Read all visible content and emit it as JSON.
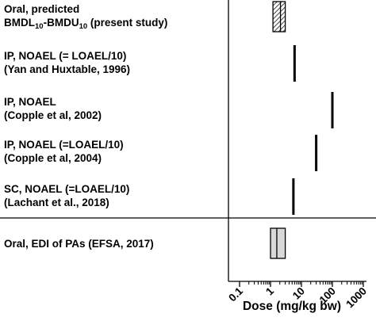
{
  "chart_data": {
    "type": "interval",
    "xscale": "log",
    "xlim": [
      0.1,
      1000
    ],
    "ticks": [
      0.1,
      1,
      10,
      100,
      1000
    ],
    "tick_labels": [
      "0.1",
      "1",
      "10",
      "100",
      "1000"
    ],
    "xlabel": "Dose (mg/kg bw)",
    "rows": [
      {
        "label_lines": [
          [
            "Oral, predicted"
          ],
          [
            "BMDL",
            {
              "sub": "10"
            },
            "-BMDU",
            {
              "sub": "10"
            },
            " (present study)"
          ]
        ],
        "kind": "box",
        "low": 1.2,
        "high": 3.0,
        "median": 2.1,
        "fill": "hatched"
      },
      {
        "label_lines": [
          [
            "IP, NOAEL (= LOAEL/10)"
          ],
          [
            "(Yan and Huxtable, 1996)"
          ]
        ],
        "kind": "line",
        "value": 6
      },
      {
        "label_lines": [
          [
            "IP, NOAEL"
          ],
          [
            "(Copple et al, 2002)"
          ]
        ],
        "kind": "line",
        "value": 100
      },
      {
        "label_lines": [
          [
            "IP, NOAEL (=LOAEL/10)"
          ],
          [
            "(Copple et al, 2004)"
          ]
        ],
        "kind": "line",
        "value": 30
      },
      {
        "label_lines": [
          [
            "SC,  NOAEL (=LOAEL/10)"
          ],
          [
            "(Lachant et al., 2018)"
          ]
        ],
        "kind": "line",
        "value": 5.5
      },
      {
        "label_lines": [
          [
            "Oral, EDI of PAs (EFSA, 2017)"
          ]
        ],
        "kind": "box",
        "low": 1.0,
        "high": 3.0,
        "median": 1.6,
        "fill": "#d8d8d8"
      }
    ]
  }
}
